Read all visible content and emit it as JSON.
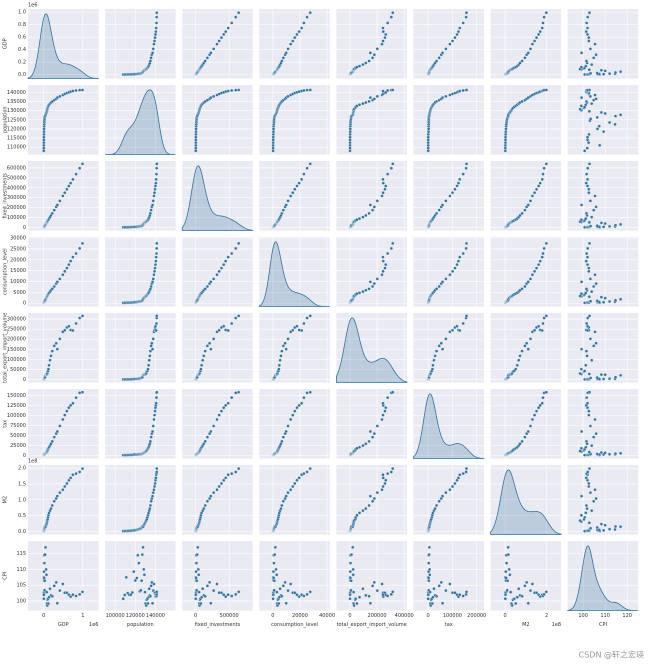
{
  "chart_data": {
    "type": "pairplot",
    "color": "#3274a1",
    "grid": true,
    "watermark": "CSDN @轩之宏瑛",
    "variables": [
      {
        "name": "GDP",
        "offset": "1e6",
        "xlim": [
          -0.4,
          1.4
        ],
        "ylim": [
          -0.06,
          1.05
        ],
        "xticks": [
          0,
          1
        ],
        "yticks": [
          {
            "value": 0,
            "label": "0.0"
          },
          0.2,
          0.4,
          0.6,
          0.8,
          {
            "value": 1,
            "label": "1.0"
          }
        ],
        "values": [
          0.0037,
          0.0041,
          0.0046,
          0.0049,
          0.0054,
          0.006,
          0.0073,
          0.0091,
          0.0104,
          0.0122,
          0.0152,
          0.0171,
          0.0189,
          0.0222,
          0.0272,
          0.0357,
          0.0486,
          0.0613,
          0.0718,
          0.0797,
          0.0852,
          0.0907,
          0.1003,
          0.1109,
          0.1215,
          0.1374,
          0.1619,
          0.1873,
          0.2194,
          0.2702,
          0.3199,
          0.349,
          0.413,
          0.4894,
          0.5392,
          0.5927,
          0.6435,
          0.6886,
          0.746,
          0.8271,
          0.9193,
          0.9909
        ]
      },
      {
        "name": "population",
        "xlim": [
          90000,
          160000
        ],
        "ylim": [
          106000,
          144000
        ],
        "xticks": [
          100000,
          120000,
          140000
        ],
        "yticks": [
          110000,
          115000,
          120000,
          125000,
          130000,
          135000,
          140000
        ],
        "values": [
          108000,
          109500,
          111000,
          112500,
          114000,
          115500,
          117000,
          118500,
          120000,
          121500,
          122500,
          123500,
          124500,
          125500,
          126300,
          127000,
          127700,
          128400,
          129000,
          129600,
          130200,
          130800,
          131400,
          132000,
          132600,
          133200,
          133800,
          134400,
          135000,
          135700,
          136400,
          137100,
          137800,
          138500,
          139100,
          139600,
          140000,
          140400,
          140700,
          141000,
          141200,
          141300
        ]
      },
      {
        "name": "fixed_investments",
        "xlim": [
          -200000,
          850000
        ],
        "ylim": [
          -30000,
          670000
        ],
        "xticks": [
          0,
          500000
        ],
        "yticks": [
          0,
          100000,
          200000,
          300000,
          400000,
          500000,
          600000
        ],
        "values": [
          2400,
          2700,
          3000,
          3200,
          3500,
          3900,
          4700,
          5900,
          6800,
          7900,
          9900,
          11100,
          12300,
          14400,
          17700,
          23200,
          31600,
          39800,
          46700,
          51800,
          55400,
          59000,
          65200,
          72100,
          79000,
          89300,
          105200,
          121700,
          142600,
          175600,
          207900,
          226800,
          268400,
          318100,
          350500,
          385300,
          418300,
          447600,
          484900,
          537600,
          597500,
          641000
        ]
      },
      {
        "name": "consumption_level",
        "xlim": [
          -10000,
          42000
        ],
        "ylim": [
          -1500,
          30500
        ],
        "xticks": [
          0,
          20000,
          40000
        ],
        "yticks": [
          0,
          5000,
          10000,
          15000,
          20000,
          25000,
          30000
        ],
        "values": [
          184,
          208,
          238,
          264,
          288,
          316,
          361,
          446,
          497,
          565,
          714,
          788,
          833,
          932,
          1116,
          1393,
          1833,
          2355,
          2789,
          3002,
          3159,
          3346,
          3721,
          4070,
          4413,
          4773,
          5332,
          5977,
          6627,
          7735,
          9041,
          9818,
          11200,
          13134,
          14699,
          16190,
          17778,
          19397,
          21228,
          22902,
          25245,
          27563
        ]
      },
      {
        "name": "total_export_import_volume",
        "xlim": [
          -100000,
          420000
        ],
        "ylim": [
          -15000,
          330000
        ],
        "xticks": [
          0,
          200000,
          400000
        ],
        "yticks": [
          0,
          50000,
          100000,
          150000,
          200000,
          250000,
          300000
        ],
        "values": [
          355,
          455,
          570,
          735,
          770,
          860,
          1201,
          2067,
          2580,
          3084,
          3822,
          4156,
          5560,
          7226,
          9120,
          11271,
          20382,
          23500,
          24134,
          26967,
          26850,
          29896,
          39273,
          42184,
          51378,
          70484,
          95539,
          116922,
          140974,
          166924,
          179921,
          150648,
          201722,
          236402,
          244160,
          258169,
          264242,
          245503,
          243386,
          278101,
          305008,
          315627
        ]
      },
      {
        "name": "tax",
        "xlim": [
          -60000,
          230000
        ],
        "ylim": [
          -8000,
          166000
        ],
        "xticks": [
          0,
          100000,
          200000
        ],
        "yticks": [
          0,
          25000,
          50000,
          75000,
          100000,
          125000,
          150000
        ],
        "values": [
          519,
          538,
          572,
          630,
          700,
          776,
          947,
          2041,
          2091,
          2140,
          2391,
          2727,
          2822,
          2990,
          3297,
          4255,
          5127,
          6038,
          6910,
          8234,
          9263,
          10683,
          12582,
          15301,
          17636,
          20017,
          24166,
          28779,
          34804,
          45622,
          54224,
          59522,
          73211,
          89738,
          100614,
          110531,
          119175,
          124922,
          130361,
          144370,
          156403,
          158000
        ]
      },
      {
        "name": "M2",
        "offset": "1e8",
        "xlim": [
          -0.7,
          2.7
        ],
        "ylim": [
          -0.1,
          2.1
        ],
        "xticks": [
          0,
          2
        ],
        "yticks": [
          {
            "value": 0,
            "label": "0.0"
          },
          0.5,
          {
            "value": 1,
            "label": "1.0"
          },
          1.5,
          {
            "value": 2,
            "label": "2.0"
          }
        ],
        "values": [
          0.0086,
          0.0106,
          0.0125,
          0.0153,
          0.0176,
          0.0206,
          0.0256,
          0.032,
          0.0397,
          0.0481,
          0.0581,
          0.0698,
          0.0833,
          0.096,
          0.1214,
          0.1532,
          0.1467,
          0.193,
          0.23,
          0.268,
          0.308,
          0.338,
          0.378,
          0.441,
          0.51,
          0.585,
          0.654,
          0.718,
          0.818,
          0.954,
          1.038,
          1.115,
          1.224,
          1.317,
          1.42,
          1.515,
          1.616,
          1.692,
          1.79,
          1.827,
          1.88,
          1.9865
        ]
      },
      {
        "name": "CPI",
        "xlim": [
          93,
          125
        ],
        "ylim": [
          97,
          119
        ],
        "xticks": [
          100,
          110,
          120
        ],
        "yticks": [
          100,
          105,
          110,
          115
        ],
        "values": [
          100.7,
          101.9,
          107.5,
          102.5,
          102,
          102,
          102.7,
          109.3,
          106.5,
          107.3,
          114.5,
          112,
          103.1,
          103.4,
          106.4,
          114.7,
          117,
          110,
          108.3,
          102.8,
          99.2,
          98.6,
          100.4,
          100.7,
          99.2,
          101.2,
          103.9,
          101.8,
          101.5,
          104.8,
          105.9,
          99.3,
          103.3,
          105.4,
          102.6,
          102.6,
          102,
          101.4,
          102,
          101.6,
          102.1,
          102.9
        ]
      }
    ]
  }
}
